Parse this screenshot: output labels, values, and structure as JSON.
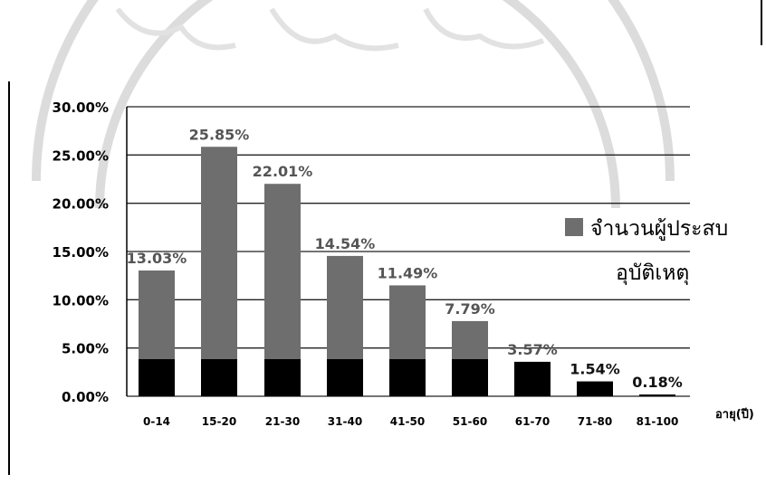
{
  "chart_data": {
    "type": "bar",
    "categories": [
      "0-14",
      "15-20",
      "21-30",
      "31-40",
      "41-50",
      "51-60",
      "61-70",
      "71-80",
      "81-100"
    ],
    "values": [
      13.03,
      25.85,
      22.01,
      14.54,
      11.49,
      7.79,
      3.57,
      1.54,
      0.18
    ],
    "value_labels": [
      "13.03%",
      "25.85%",
      "22.01%",
      "14.54%",
      "11.49%",
      "7.79%",
      "3.57%",
      "1.54%",
      "0.18%"
    ],
    "series": [
      {
        "name": "จำนวนผู้ประสบอุบัติเหตุ",
        "values": [
          13.03,
          25.85,
          22.01,
          14.54,
          11.49,
          7.79,
          3.57,
          1.54,
          0.18
        ]
      }
    ],
    "legend": {
      "line1": "จำนวนผู้ประสบ",
      "line2": "อุบัติเหตุ",
      "placement": "right"
    },
    "xlabel": "อายุ(ปี)",
    "ylabel": "",
    "ylim": [
      0,
      30
    ],
    "yticks": [
      "0.00%",
      "5.00%",
      "10.00%",
      "15.00%",
      "20.00%",
      "25.00%",
      "30.00%"
    ],
    "ytick_values": [
      0,
      5,
      10,
      15,
      20,
      25,
      30
    ],
    "grid": true,
    "colors": {
      "bar": "#6e6e6e",
      "bar_base": "#000000",
      "grid": "#222222",
      "watermark": "#dcdcdc"
    }
  }
}
